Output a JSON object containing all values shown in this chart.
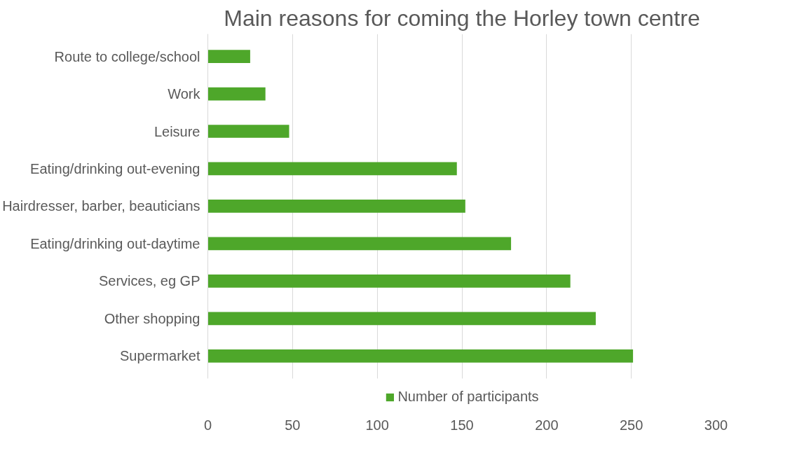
{
  "chart_data": {
    "type": "bar",
    "orientation": "horizontal",
    "title": "Main reasons for coming the Horley town centre",
    "categories": [
      "Route to college/school",
      "Work",
      "Leisure",
      "Eating/drinking out-evening",
      "Hairdresser, barber, beauticians",
      "Eating/drinking out-daytime",
      "Services, eg GP",
      "Other shopping",
      "Supermarket"
    ],
    "series": [
      {
        "name": "Number of participants",
        "color": "#4ea72a",
        "values": [
          25,
          34,
          48,
          147,
          152,
          179,
          214,
          229,
          251
        ]
      }
    ],
    "xlim": [
      0,
      300
    ],
    "xticks": [
      0,
      50,
      100,
      150,
      200,
      250,
      300
    ],
    "grid": "x",
    "legend": "bottom"
  }
}
